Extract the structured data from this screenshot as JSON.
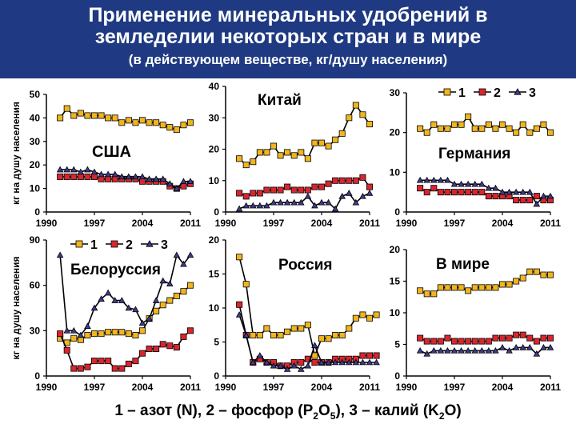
{
  "title": {
    "line1": "Применение минеральных удобрений в",
    "line2": "земледелии некоторых стран и в мире",
    "line3": "(в действующем веществе, кг/душу населения)"
  },
  "caption": {
    "p1": "1 – азот (N), 2 – фосфор (P",
    "sub1": "2",
    "p2": "O",
    "sub2": "5",
    "p3": "), 3 – калий (K",
    "sub3": "2",
    "p4": "O)"
  },
  "ylabel": "кг на душу населения",
  "colors": {
    "n": "#f2b51d",
    "p": "#d9262e",
    "k": "#3e3c91",
    "line": "#000000"
  },
  "chart_data": [
    {
      "type": "line",
      "title": "США",
      "xlabel": "",
      "ylabel": "кг на душу населения",
      "xlim": [
        1990,
        2011
      ],
      "ylim": [
        0,
        50
      ],
      "xticks": [
        "1990",
        "1997",
        "2004",
        "2011"
      ],
      "yticks": [
        "0",
        "10",
        "20",
        "30",
        "40",
        "50"
      ],
      "series": [
        {
          "name": "1",
          "start": 1992,
          "values": [
            40,
            44,
            41,
            42,
            41,
            41,
            41,
            40,
            40,
            38,
            39,
            38,
            39,
            38,
            38,
            37,
            36,
            35,
            37,
            38
          ]
        },
        {
          "name": "2",
          "start": 1992,
          "values": [
            15,
            15,
            15,
            15,
            15,
            15,
            14,
            14,
            14,
            14,
            14,
            14,
            13,
            13,
            13,
            13,
            11,
            10,
            11,
            12
          ]
        },
        {
          "name": "3",
          "start": 1992,
          "values": [
            18,
            18,
            18,
            17,
            18,
            17,
            16,
            16,
            16,
            15,
            15,
            15,
            15,
            14,
            14,
            14,
            12,
            10,
            13,
            13
          ]
        }
      ]
    },
    {
      "type": "line",
      "title": "Китай",
      "xlabel": "",
      "ylabel": "",
      "xlim": [
        1990,
        2011
      ],
      "ylim": [
        0,
        40
      ],
      "xticks": [
        "1990",
        "1997",
        "2004",
        "2011"
      ],
      "yticks": [
        "0",
        "10",
        "20",
        "30",
        "40"
      ],
      "series": [
        {
          "name": "1",
          "start": 1992,
          "values": [
            17,
            15,
            16,
            19,
            19,
            21,
            18,
            19,
            18,
            19,
            17,
            22,
            22,
            21,
            23,
            25,
            30,
            34,
            31,
            28
          ]
        },
        {
          "name": "2",
          "start": 1992,
          "values": [
            6,
            5,
            6,
            6,
            7,
            7,
            7,
            8,
            7,
            7,
            7,
            8,
            8,
            9,
            10,
            10,
            10,
            10,
            11,
            8
          ]
        },
        {
          "name": "3",
          "start": 1992,
          "values": [
            1,
            2,
            2,
            2,
            2,
            3,
            3,
            3,
            3,
            3,
            5,
            2,
            3,
            3,
            1,
            5,
            6,
            3,
            5,
            6
          ]
        }
      ]
    },
    {
      "type": "line",
      "title": "Германия",
      "xlabel": "",
      "ylabel": "",
      "xlim": [
        1990,
        2011
      ],
      "ylim": [
        0,
        30
      ],
      "xticks": [
        "1990",
        "1997",
        "2004",
        "2011"
      ],
      "yticks": [
        "0",
        "10",
        "20",
        "30"
      ],
      "series": [
        {
          "name": "1",
          "start": 1992,
          "values": [
            21,
            20,
            22,
            21,
            21,
            22,
            22,
            24,
            21,
            21,
            22,
            21,
            22,
            21,
            20,
            22,
            20,
            21,
            22,
            20
          ]
        },
        {
          "name": "2",
          "start": 1992,
          "values": [
            6,
            5,
            6,
            5,
            5,
            5,
            5,
            5,
            5,
            5,
            4,
            4,
            4,
            4,
            3,
            3,
            3,
            4,
            3,
            3
          ]
        },
        {
          "name": "3",
          "start": 1992,
          "values": [
            8,
            8,
            8,
            8,
            8,
            7,
            7,
            7,
            7,
            7,
            6,
            6,
            5,
            5,
            5,
            5,
            5,
            2,
            4,
            4
          ]
        }
      ]
    },
    {
      "type": "line",
      "title": "Белоруссия",
      "xlabel": "",
      "ylabel": "кг на душу населения",
      "xlim": [
        1990,
        2011
      ],
      "ylim": [
        0,
        90
      ],
      "xticks": [
        "1990",
        "1997",
        "2004",
        "2011"
      ],
      "yticks": [
        "0",
        "30",
        "60",
        "90"
      ],
      "series": [
        {
          "name": "1",
          "start": 1992,
          "values": [
            25,
            22,
            25,
            24,
            27,
            28,
            28,
            29,
            29,
            29,
            28,
            27,
            30,
            38,
            43,
            47,
            50,
            53,
            56,
            60
          ]
        },
        {
          "name": "2",
          "start": 1992,
          "values": [
            28,
            17,
            5,
            5,
            6,
            10,
            10,
            10,
            5,
            5,
            8,
            10,
            15,
            18,
            18,
            21,
            20,
            19,
            26,
            30
          ]
        },
        {
          "name": "3",
          "start": 1992,
          "values": [
            80,
            30,
            30,
            27,
            33,
            45,
            51,
            55,
            50,
            50,
            45,
            44,
            35,
            38,
            50,
            63,
            61,
            80,
            74,
            80
          ]
        }
      ]
    },
    {
      "type": "line",
      "title": "Россия",
      "xlabel": "",
      "ylabel": "",
      "xlim": [
        1990,
        2011
      ],
      "ylim": [
        0,
        20
      ],
      "xticks": [
        "1990",
        "1997",
        "2004",
        "2011"
      ],
      "yticks": [
        "0",
        "5",
        "10",
        "15",
        "20"
      ],
      "series": [
        {
          "name": "1",
          "start": 1992,
          "values": [
            17.5,
            13.5,
            6,
            6,
            7,
            6,
            6,
            6.5,
            7,
            7,
            7.5,
            3,
            5.5,
            5.5,
            6,
            6,
            7,
            8.5,
            9,
            8.5,
            9
          ]
        },
        {
          "name": "2",
          "start": 1992,
          "values": [
            10.5,
            6,
            2,
            2.5,
            2,
            2,
            1.5,
            1.5,
            2,
            2,
            2.5,
            2,
            2,
            2,
            2.5,
            2.5,
            2.5,
            2.5,
            3,
            3,
            3
          ]
        },
        {
          "name": "3",
          "start": 1992,
          "values": [
            9,
            6,
            2,
            3,
            2,
            1.5,
            1.5,
            1,
            1.5,
            1,
            1.5,
            4.5,
            2,
            2,
            2,
            2,
            2,
            2,
            2,
            2,
            2
          ]
        }
      ]
    },
    {
      "type": "line",
      "title": "В мире",
      "xlabel": "",
      "ylabel": "",
      "xlim": [
        1990,
        2011
      ],
      "ylim": [
        0,
        20
      ],
      "xticks": [
        "1990",
        "1997",
        "2004",
        "2011"
      ],
      "yticks": [
        "0",
        "5",
        "10",
        "15",
        "20"
      ],
      "series": [
        {
          "name": "1",
          "start": 1992,
          "values": [
            13.5,
            13,
            13,
            14,
            14,
            14,
            14,
            13.5,
            14,
            14,
            14,
            14,
            14.5,
            14.5,
            15,
            15.5,
            16.5,
            16.5,
            16,
            16
          ]
        },
        {
          "name": "2",
          "start": 1992,
          "values": [
            6,
            5.5,
            5.5,
            5.5,
            6,
            5.5,
            5.5,
            5.5,
            5.5,
            5.5,
            5.5,
            6,
            6,
            6,
            6.5,
            6.5,
            6,
            5.5,
            6,
            6
          ]
        },
        {
          "name": "3",
          "start": 1992,
          "values": [
            4,
            3.5,
            4,
            4,
            4,
            4,
            4,
            4,
            4,
            4,
            4,
            4,
            4.5,
            4,
            4.5,
            4.5,
            4.5,
            3.5,
            4.5,
            4.5
          ]
        }
      ]
    }
  ],
  "legend": {
    "items": [
      "1",
      "2",
      "3"
    ]
  }
}
